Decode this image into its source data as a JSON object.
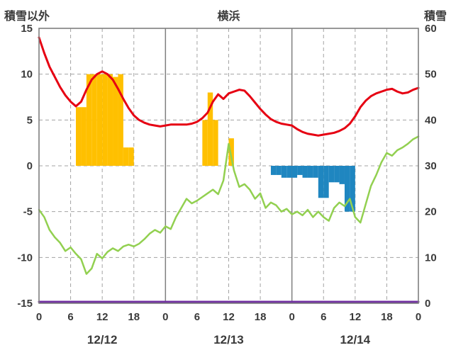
{
  "header": {
    "left_label": "積雪以外",
    "title": "横浜",
    "right_label": "積雪"
  },
  "chart_data": {
    "type": "line",
    "title": "横浜",
    "x_axis": {
      "unit": "hour",
      "range": [
        0,
        72
      ],
      "ticks": [
        0,
        6,
        12,
        18,
        24,
        30,
        36,
        42,
        48,
        54,
        60,
        66,
        72
      ],
      "tick_labels": [
        "0",
        "6",
        "12",
        "18",
        "0",
        "6",
        "12",
        "18",
        "0",
        "6",
        "12",
        "18",
        "0"
      ],
      "day_labels": [
        {
          "label": "12/12",
          "hour": 12
        },
        {
          "label": "12/13",
          "hour": 36
        },
        {
          "label": "12/14",
          "hour": 60
        }
      ]
    },
    "y_left": {
      "label": "積雪以外",
      "range": [
        -15,
        15
      ],
      "ticks": [
        15,
        10,
        5,
        0,
        -5,
        -10,
        -15
      ]
    },
    "y_right": {
      "label": "積雪",
      "range": [
        0,
        60
      ],
      "ticks": [
        60,
        50,
        40,
        30,
        20,
        10,
        0
      ]
    },
    "grid": {
      "color": "#a3a3a3",
      "day_line_color": "#7f7f7f",
      "style": "dashed"
    },
    "border_color": "#7f7f7f",
    "text_color": "#3a3a3a",
    "series": [
      {
        "name": "red-line",
        "axis": "left",
        "color": "#e60012",
        "values": [
          14,
          12.3,
          10.8,
          9.7,
          8.6,
          7.7,
          7,
          6.5,
          7,
          8.3,
          9.4,
          10,
          10.3,
          10,
          9.4,
          8.4,
          7.3,
          6.3,
          5.5,
          5,
          4.7,
          4.5,
          4.4,
          4.3,
          4.4,
          4.5,
          4.5,
          4.5,
          4.5,
          4.6,
          4.8,
          5.2,
          5.8,
          7,
          7.8,
          7.3,
          7.9,
          8.1,
          8.3,
          8.2,
          7.6,
          6.9,
          6.2,
          5.6,
          5.1,
          4.8,
          4.6,
          4.5,
          4.4,
          4,
          3.7,
          3.5,
          3.4,
          3.3,
          3.4,
          3.5,
          3.6,
          3.8,
          4.1,
          4.6,
          5.4,
          6.4,
          7.1,
          7.6,
          7.9,
          8.1,
          8.3,
          8.4,
          8.1,
          7.9,
          8,
          8.3,
          8.5
        ]
      },
      {
        "name": "green-line",
        "axis": "left",
        "color": "#92d050",
        "values": [
          -4.8,
          -5.6,
          -7,
          -7.8,
          -8.4,
          -9.3,
          -8.9,
          -9.6,
          -10.2,
          -11.8,
          -11.2,
          -9.6,
          -10.1,
          -9.4,
          -9,
          -9.3,
          -8.8,
          -8.6,
          -8.8,
          -8.5,
          -8,
          -7.4,
          -7,
          -7.3,
          -6.6,
          -6.9,
          -5.6,
          -4.6,
          -3.6,
          -4.1,
          -3.8,
          -3.4,
          -3,
          -2.6,
          -3.1,
          -1.6,
          2.4,
          -0.5,
          -2.3,
          -2,
          -2.6,
          -3.6,
          -3,
          -4.6,
          -4,
          -4.3,
          -5,
          -4.7,
          -5.3,
          -5,
          -5.4,
          -4.8,
          -5.6,
          -5,
          -5.6,
          -6,
          -4.6,
          -4,
          -4.4,
          -3.6,
          -5.6,
          -6.2,
          -4.2,
          -2.2,
          -1,
          0.4,
          1.4,
          1.1,
          1.7,
          2,
          2.4,
          2.9,
          3.2
        ]
      },
      {
        "name": "purple-line",
        "axis": "right",
        "color": "#7030a0",
        "constant": 0
      }
    ],
    "bars": [
      {
        "name": "orange-bar",
        "color": "#ffc000",
        "axis": "left",
        "points": [
          [
            7,
            6.4
          ],
          [
            8,
            6.4
          ],
          [
            9,
            10
          ],
          [
            10,
            10
          ],
          [
            11,
            10
          ],
          [
            12,
            10
          ],
          [
            13,
            10
          ],
          [
            14,
            9.7
          ],
          [
            15,
            10
          ],
          [
            16,
            2
          ],
          [
            17,
            2
          ],
          [
            31,
            5
          ],
          [
            32,
            8
          ],
          [
            33,
            5
          ],
          [
            36,
            3
          ]
        ]
      },
      {
        "name": "blue-bar",
        "color": "#1f86c0",
        "axis": "left",
        "points": [
          [
            44,
            -1
          ],
          [
            45,
            -1
          ],
          [
            46,
            -1.3
          ],
          [
            47,
            -1.3
          ],
          [
            48,
            -1.3
          ],
          [
            49,
            -1
          ],
          [
            50,
            -1.3
          ],
          [
            51,
            -1.3
          ],
          [
            52,
            -1.3
          ],
          [
            53,
            -3.5
          ],
          [
            54,
            -3.5
          ],
          [
            55,
            -1.8
          ],
          [
            56,
            -1.8
          ],
          [
            57,
            -2
          ],
          [
            58,
            -5
          ],
          [
            59,
            -5
          ]
        ]
      }
    ]
  }
}
